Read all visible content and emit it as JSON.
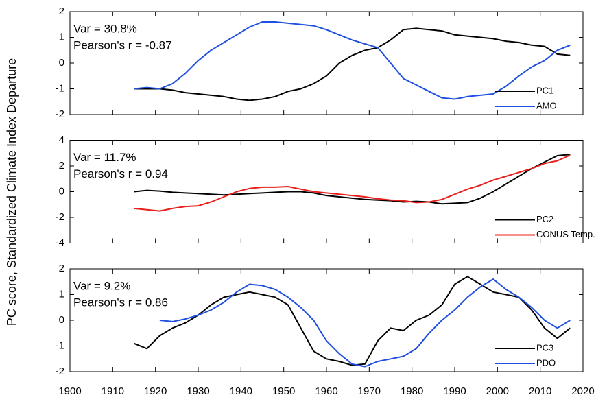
{
  "chart_data": [
    {
      "type": "line",
      "ylabel": "PC score, Standardized Climate Index Departure",
      "annotations": [
        "Var = 30.8%",
        "Pearson's r = -0.87"
      ],
      "x": [
        1915,
        1918,
        1921,
        1924,
        1927,
        1930,
        1933,
        1936,
        1939,
        1942,
        1945,
        1948,
        1951,
        1954,
        1957,
        1960,
        1963,
        1966,
        1969,
        1972,
        1975,
        1978,
        1981,
        1984,
        1987,
        1990,
        1993,
        1996,
        1999,
        2002,
        2005,
        2008,
        2011,
        2014,
        2017
      ],
      "series": [
        {
          "name": "PC1",
          "color": "#000000",
          "values": [
            -1.0,
            -1.0,
            -1.0,
            -1.05,
            -1.15,
            -1.2,
            -1.25,
            -1.3,
            -1.4,
            -1.45,
            -1.4,
            -1.3,
            -1.1,
            -1.0,
            -0.8,
            -0.5,
            0.0,
            0.3,
            0.5,
            0.6,
            0.9,
            1.3,
            1.35,
            1.3,
            1.25,
            1.1,
            1.05,
            1.0,
            0.95,
            0.85,
            0.8,
            0.7,
            0.65,
            0.35,
            0.3
          ]
        },
        {
          "name": "AMO",
          "color": "#1f4fe0",
          "values": [
            -1.0,
            -0.95,
            -1.0,
            -0.8,
            -0.4,
            0.1,
            0.5,
            0.8,
            1.1,
            1.4,
            1.6,
            1.6,
            1.55,
            1.5,
            1.45,
            1.3,
            1.1,
            0.9,
            0.75,
            0.6,
            0.0,
            -0.6,
            -0.85,
            -1.1,
            -1.35,
            -1.4,
            -1.3,
            -1.25,
            -1.2,
            -0.9,
            -0.5,
            -0.15,
            0.1,
            0.5,
            0.7
          ]
        }
      ],
      "xlim": [
        1900,
        2020
      ],
      "xticks": [
        1900,
        1910,
        1920,
        1930,
        1940,
        1950,
        1960,
        1970,
        1980,
        1990,
        2000,
        2010,
        2020
      ],
      "ylim": [
        -2,
        2
      ],
      "yticks": [
        -2,
        -1,
        0,
        1,
        2
      ],
      "legend": "lower right"
    },
    {
      "type": "line",
      "annotations": [
        "Var = 11.7%",
        "Pearson's r = 0.94"
      ],
      "x": [
        1915,
        1918,
        1921,
        1924,
        1927,
        1930,
        1933,
        1936,
        1939,
        1942,
        1945,
        1948,
        1951,
        1954,
        1957,
        1960,
        1963,
        1966,
        1969,
        1972,
        1975,
        1978,
        1981,
        1984,
        1987,
        1990,
        1993,
        1996,
        1999,
        2002,
        2005,
        2008,
        2011,
        2014,
        2017
      ],
      "series": [
        {
          "name": "PC2",
          "color": "#000000",
          "values": [
            0.0,
            0.1,
            0.05,
            -0.05,
            -0.1,
            -0.15,
            -0.2,
            -0.25,
            -0.2,
            -0.15,
            -0.1,
            -0.05,
            0.0,
            0.0,
            -0.1,
            -0.3,
            -0.4,
            -0.5,
            -0.6,
            -0.65,
            -0.7,
            -0.8,
            -0.75,
            -0.8,
            -0.95,
            -0.9,
            -0.85,
            -0.5,
            0.0,
            0.6,
            1.2,
            1.8,
            2.3,
            2.8,
            2.9
          ]
        },
        {
          "name": "CONUS Temp.",
          "color": "#e8201c",
          "values": [
            -1.3,
            -1.4,
            -1.5,
            -1.3,
            -1.15,
            -1.1,
            -0.8,
            -0.4,
            0.0,
            0.25,
            0.35,
            0.35,
            0.4,
            0.2,
            0.0,
            -0.1,
            -0.2,
            -0.3,
            -0.4,
            -0.55,
            -0.65,
            -0.7,
            -0.85,
            -0.8,
            -0.6,
            -0.2,
            0.2,
            0.5,
            0.9,
            1.2,
            1.5,
            1.8,
            2.2,
            2.4,
            2.85
          ]
        }
      ],
      "xlim": [
        1900,
        2020
      ],
      "xticks": [
        1900,
        1910,
        1920,
        1930,
        1940,
        1950,
        1960,
        1970,
        1980,
        1990,
        2000,
        2010,
        2020
      ],
      "ylim": [
        -4,
        4
      ],
      "yticks": [
        -4,
        -2,
        0,
        2,
        4
      ],
      "legend": "lower right"
    },
    {
      "type": "line",
      "annotations": [
        "Var = 9.2%",
        "Pearson's r = 0.86"
      ],
      "x": [
        1915,
        1918,
        1921,
        1924,
        1927,
        1930,
        1933,
        1936,
        1939,
        1942,
        1945,
        1948,
        1951,
        1954,
        1957,
        1960,
        1963,
        1966,
        1969,
        1972,
        1975,
        1978,
        1981,
        1984,
        1987,
        1990,
        1993,
        1996,
        1999,
        2002,
        2005,
        2008,
        2011,
        2014,
        2017
      ],
      "series": [
        {
          "name": "PC3",
          "color": "#000000",
          "values": [
            -0.9,
            -1.1,
            -0.6,
            -0.3,
            -0.1,
            0.2,
            0.6,
            0.9,
            1.0,
            1.1,
            1.0,
            0.9,
            0.6,
            -0.3,
            -1.2,
            -1.5,
            -1.6,
            -1.75,
            -1.7,
            -0.8,
            -0.3,
            -0.4,
            0.0,
            0.2,
            0.6,
            1.4,
            1.7,
            1.4,
            1.1,
            1.0,
            0.9,
            0.4,
            -0.3,
            -0.7,
            -0.3
          ]
        },
        {
          "name": "PDO",
          "color": "#1f4fe0",
          "values": [
            null,
            null,
            0.0,
            -0.05,
            0.05,
            0.2,
            0.4,
            0.7,
            1.1,
            1.4,
            1.35,
            1.2,
            0.9,
            0.5,
            0.0,
            -0.8,
            -1.3,
            -1.7,
            -1.8,
            -1.6,
            -1.5,
            -1.4,
            -1.1,
            -0.5,
            0.0,
            0.4,
            0.9,
            1.3,
            1.6,
            1.2,
            0.9,
            0.5,
            0.0,
            -0.3,
            0.0
          ]
        }
      ],
      "xlim": [
        1900,
        2020
      ],
      "xticks": [
        1900,
        1910,
        1920,
        1930,
        1940,
        1950,
        1960,
        1970,
        1980,
        1990,
        2000,
        2010,
        2020
      ],
      "ylim": [
        -2,
        2
      ],
      "yticks": [
        -2,
        -1,
        0,
        1,
        2
      ],
      "legend": "lower right"
    }
  ]
}
